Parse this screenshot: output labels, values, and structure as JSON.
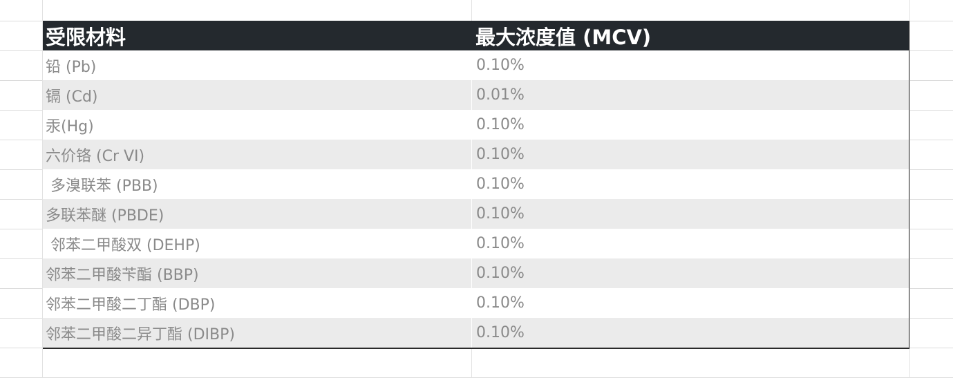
{
  "table": {
    "headers": [
      "受限材料",
      "最大浓度值 (MCV)"
    ],
    "rows": [
      {
        "material": "铅 (Pb)",
        "mcv": "0.10%"
      },
      {
        "material": "镉 (Cd)",
        "mcv": "0.01%"
      },
      {
        "material": "汞(Hg)",
        "mcv": "0.10%"
      },
      {
        "material": "六价铬 (Cr VI)",
        "mcv": "0.10%"
      },
      {
        "material": " 多溴联苯 (PBB)",
        "mcv": "0.10%"
      },
      {
        "material": "多联苯醚 (PBDE)",
        "mcv": "0.10%"
      },
      {
        "material": " 邻苯二甲酸双 (DEHP)",
        "mcv": "0.10%"
      },
      {
        "material": "邻苯二甲酸苄酯 (BBP)",
        "mcv": "0.10%"
      },
      {
        "material": "邻苯二甲酸二丁酯 (DBP)",
        "mcv": "0.10%"
      },
      {
        "material": "邻苯二甲酸二异丁酯 (DIBP)",
        "mcv": "0.10%"
      }
    ]
  },
  "colors": {
    "header_bg": "#24292e",
    "header_text": "#ffffff",
    "stripe": "#ebebeb",
    "cell_text": "#8a8a8a"
  }
}
